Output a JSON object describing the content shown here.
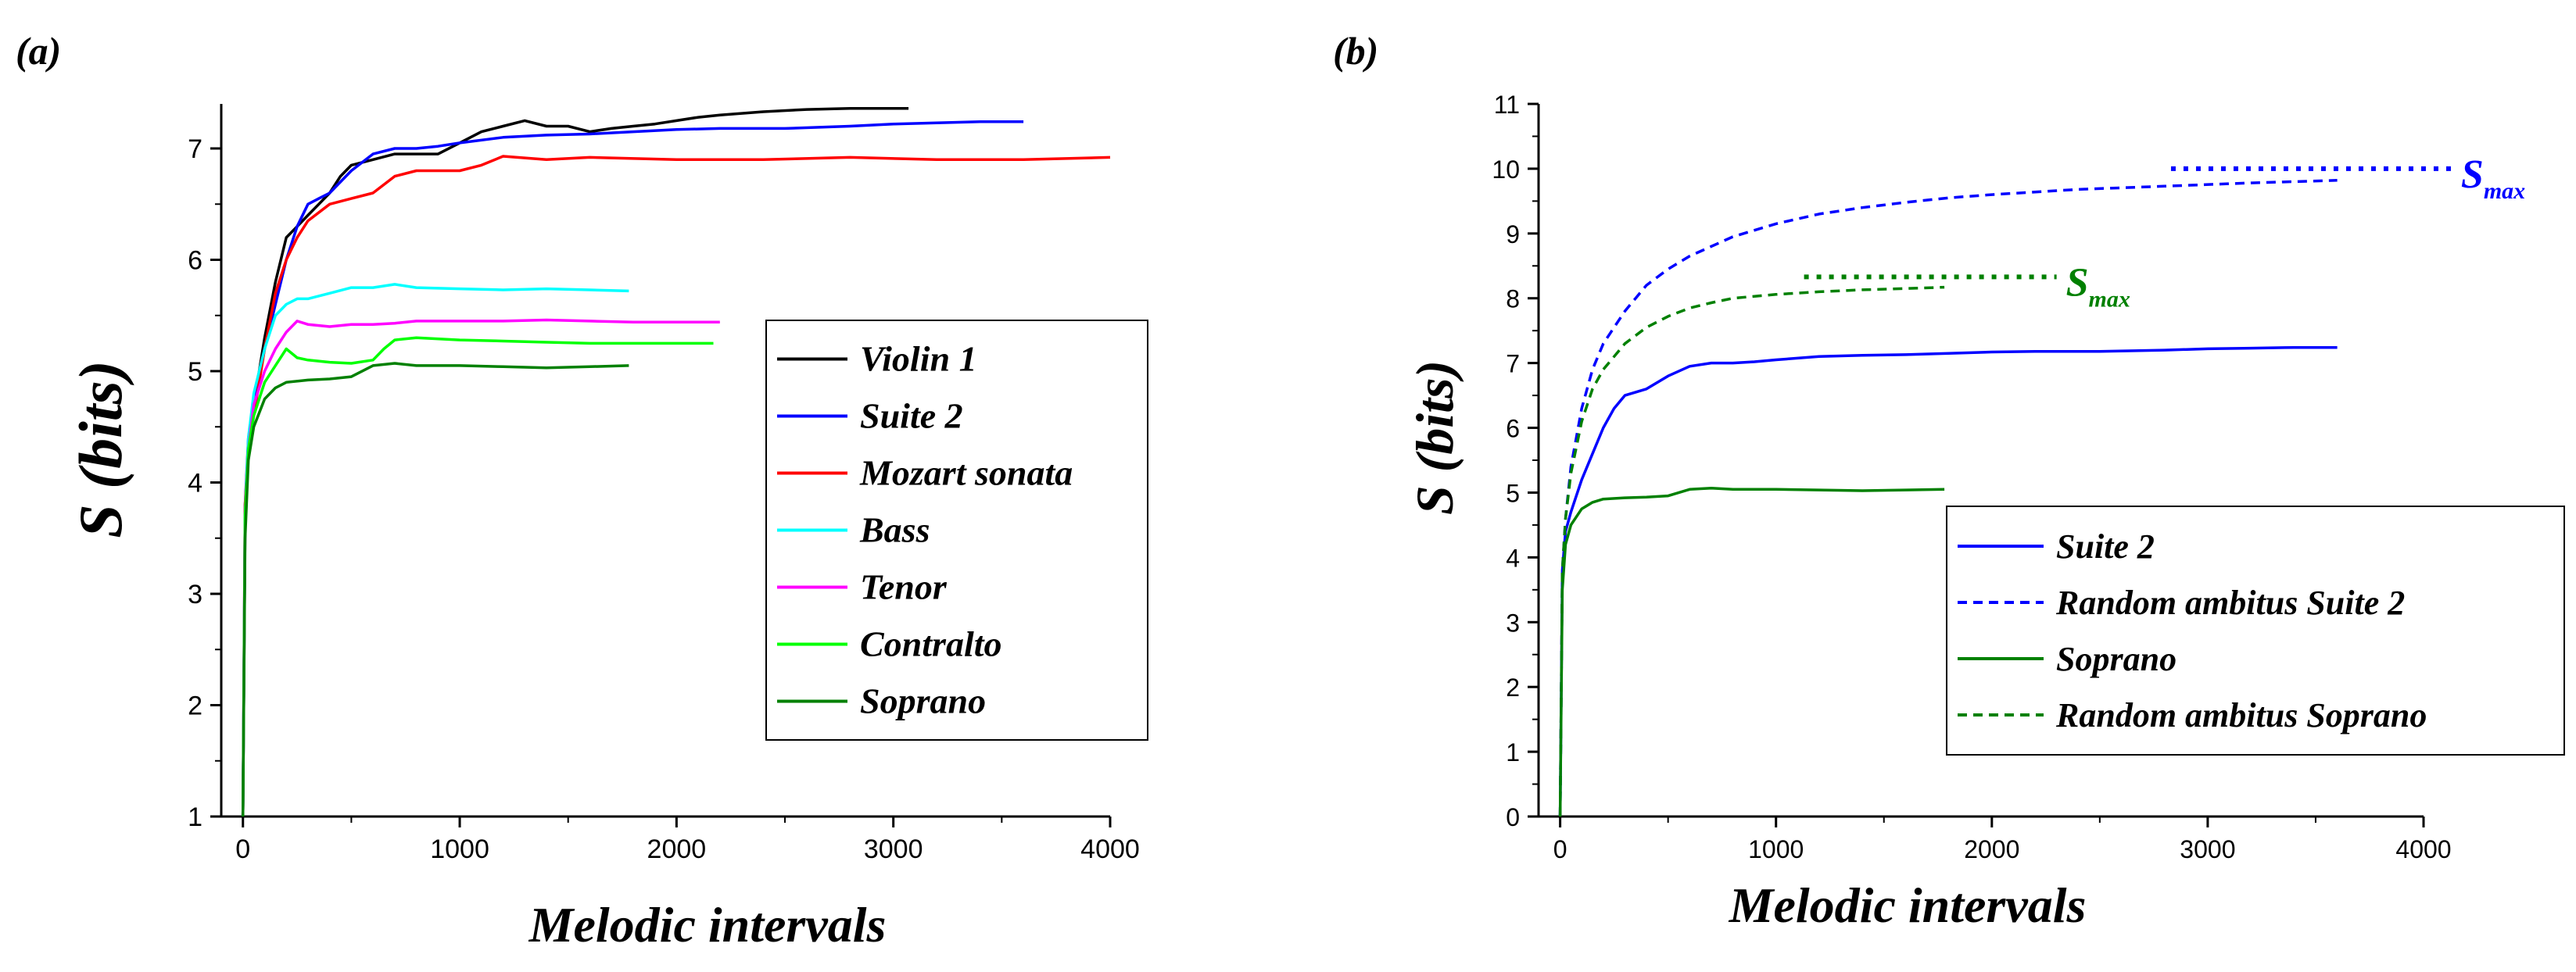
{
  "chart_data": [
    {
      "panel_label": "(a)",
      "type": "line",
      "xlabel": "Melodic intervals",
      "ylabel": "S (bits)",
      "xlim": [
        -100,
        4000
      ],
      "ylim": [
        1,
        7.4
      ],
      "xticks": [
        "0",
        "1000",
        "2000",
        "3000",
        "4000"
      ],
      "yticks": [
        "1",
        "2",
        "3",
        "4",
        "5",
        "6",
        "7"
      ],
      "legend_position": "center-right",
      "series": [
        {
          "name": "Violin 1",
          "color": "#000000",
          "dash": "solid",
          "x": [
            0,
            10,
            25,
            50,
            100,
            150,
            200,
            250,
            300,
            350,
            400,
            450,
            500,
            600,
            700,
            800,
            900,
            1000,
            1100,
            1200,
            1300,
            1400,
            1500,
            1600,
            1700,
            1800,
            1900,
            2000,
            2100,
            2200,
            2400,
            2600,
            2800,
            3000,
            3070
          ],
          "y": [
            1.0,
            3.6,
            4.3,
            4.7,
            5.3,
            5.8,
            6.2,
            6.3,
            6.4,
            6.5,
            6.6,
            6.75,
            6.85,
            6.9,
            6.95,
            6.95,
            6.95,
            7.05,
            7.15,
            7.2,
            7.25,
            7.2,
            7.2,
            7.15,
            7.18,
            7.2,
            7.22,
            7.25,
            7.28,
            7.3,
            7.33,
            7.35,
            7.36,
            7.36,
            7.36
          ]
        },
        {
          "name": "Suite 2",
          "color": "#0000ff",
          "dash": "solid",
          "x": [
            0,
            10,
            25,
            50,
            100,
            150,
            200,
            250,
            300,
            350,
            400,
            500,
            600,
            700,
            800,
            900,
            1000,
            1200,
            1400,
            1600,
            1800,
            2000,
            2200,
            2500,
            2800,
            3000,
            3200,
            3400,
            3600
          ],
          "y": [
            1.0,
            3.8,
            4.4,
            4.7,
            5.2,
            5.6,
            6.0,
            6.3,
            6.5,
            6.55,
            6.6,
            6.8,
            6.95,
            7.0,
            7.0,
            7.02,
            7.05,
            7.1,
            7.12,
            7.13,
            7.15,
            7.17,
            7.18,
            7.18,
            7.2,
            7.22,
            7.23,
            7.24,
            7.24
          ]
        },
        {
          "name": "Mozart sonata",
          "color": "#ff0000",
          "dash": "solid",
          "x": [
            0,
            10,
            25,
            50,
            100,
            150,
            200,
            250,
            300,
            400,
            500,
            600,
            700,
            800,
            1000,
            1100,
            1200,
            1400,
            1600,
            2000,
            2400,
            2800,
            3200,
            3600,
            4000
          ],
          "y": [
            1.0,
            3.8,
            4.3,
            4.6,
            5.2,
            5.7,
            6.0,
            6.2,
            6.35,
            6.5,
            6.55,
            6.6,
            6.75,
            6.8,
            6.8,
            6.85,
            6.93,
            6.9,
            6.92,
            6.9,
            6.9,
            6.92,
            6.9,
            6.9,
            6.92
          ]
        },
        {
          "name": "Bass",
          "color": "#00ffff",
          "dash": "solid",
          "x": [
            0,
            10,
            25,
            50,
            100,
            150,
            200,
            250,
            300,
            400,
            500,
            600,
            700,
            800,
            1000,
            1200,
            1400,
            1600,
            1780
          ],
          "y": [
            1.0,
            3.7,
            4.4,
            4.8,
            5.2,
            5.5,
            5.6,
            5.65,
            5.65,
            5.7,
            5.75,
            5.75,
            5.78,
            5.75,
            5.74,
            5.73,
            5.74,
            5.73,
            5.72
          ]
        },
        {
          "name": "Tenor",
          "color": "#ff00ff",
          "dash": "solid",
          "x": [
            0,
            10,
            25,
            50,
            100,
            150,
            200,
            250,
            300,
            400,
            500,
            600,
            700,
            800,
            1000,
            1200,
            1400,
            1600,
            1800,
            2000,
            2200
          ],
          "y": [
            1.0,
            3.6,
            4.3,
            4.7,
            5.0,
            5.2,
            5.35,
            5.45,
            5.42,
            5.4,
            5.42,
            5.42,
            5.43,
            5.45,
            5.45,
            5.45,
            5.46,
            5.45,
            5.44,
            5.44,
            5.44
          ]
        },
        {
          "name": "Contralto",
          "color": "#00ff00",
          "dash": "solid",
          "x": [
            0,
            10,
            25,
            50,
            100,
            150,
            200,
            250,
            300,
            400,
            500,
            600,
            650,
            700,
            800,
            1000,
            1200,
            1400,
            1600,
            1800,
            2000,
            2170
          ],
          "y": [
            1.0,
            3.7,
            4.3,
            4.6,
            4.9,
            5.05,
            5.2,
            5.12,
            5.1,
            5.08,
            5.07,
            5.1,
            5.2,
            5.28,
            5.3,
            5.28,
            5.27,
            5.26,
            5.25,
            5.25,
            5.25,
            5.25
          ]
        },
        {
          "name": "Soprano",
          "color": "#008000",
          "dash": "solid",
          "x": [
            0,
            10,
            25,
            50,
            100,
            150,
            200,
            300,
            400,
            500,
            600,
            700,
            800,
            1000,
            1200,
            1400,
            1600,
            1780
          ],
          "y": [
            1.0,
            3.5,
            4.2,
            4.5,
            4.75,
            4.85,
            4.9,
            4.92,
            4.93,
            4.95,
            5.05,
            5.07,
            5.05,
            5.05,
            5.04,
            5.03,
            5.04,
            5.05
          ]
        }
      ]
    },
    {
      "panel_label": "(b)",
      "type": "line",
      "xlabel": "Melodic intervals",
      "ylabel": "S (bits)",
      "xlim": [
        -100,
        4000
      ],
      "ylim": [
        0,
        11
      ],
      "xticks": [
        "0",
        "1000",
        "2000",
        "3000",
        "4000"
      ],
      "yticks": [
        "0",
        "1",
        "2",
        "3",
        "4",
        "5",
        "6",
        "7",
        "8",
        "9",
        "10",
        "11"
      ],
      "legend_position": "bottom-right",
      "series": [
        {
          "name": "Suite 2",
          "color": "#0000ff",
          "dash": "solid",
          "x": [
            0,
            10,
            25,
            50,
            100,
            150,
            200,
            250,
            300,
            350,
            400,
            500,
            600,
            700,
            800,
            900,
            1000,
            1200,
            1400,
            1600,
            1800,
            2000,
            2200,
            2500,
            2800,
            3000,
            3200,
            3400,
            3600
          ],
          "y": [
            0.0,
            3.8,
            4.4,
            4.7,
            5.2,
            5.6,
            6.0,
            6.3,
            6.5,
            6.55,
            6.6,
            6.8,
            6.95,
            7.0,
            7.0,
            7.02,
            7.05,
            7.1,
            7.12,
            7.13,
            7.15,
            7.17,
            7.18,
            7.18,
            7.2,
            7.22,
            7.23,
            7.24,
            7.24
          ]
        },
        {
          "name": "Random ambitus Suite 2",
          "color": "#0000ff",
          "dash": "dashed",
          "x": [
            0,
            10,
            25,
            50,
            100,
            150,
            200,
            300,
            400,
            500,
            600,
            700,
            800,
            1000,
            1200,
            1400,
            1600,
            1800,
            2000,
            2400,
            2800,
            3200,
            3600
          ],
          "y": [
            0.0,
            3.8,
            4.6,
            5.4,
            6.3,
            6.9,
            7.3,
            7.8,
            8.2,
            8.45,
            8.65,
            8.8,
            8.95,
            9.15,
            9.3,
            9.4,
            9.48,
            9.55,
            9.6,
            9.68,
            9.73,
            9.78,
            9.82
          ]
        },
        {
          "name": "Soprano",
          "color": "#008000",
          "dash": "solid",
          "x": [
            0,
            10,
            25,
            50,
            100,
            150,
            200,
            300,
            400,
            500,
            600,
            700,
            800,
            1000,
            1200,
            1400,
            1600,
            1780
          ],
          "y": [
            0.0,
            3.5,
            4.2,
            4.5,
            4.75,
            4.85,
            4.9,
            4.92,
            4.93,
            4.95,
            5.05,
            5.07,
            5.05,
            5.05,
            5.04,
            5.03,
            5.04,
            5.05
          ]
        },
        {
          "name": "Random ambitus Soprano",
          "color": "#008000",
          "dash": "dashed",
          "x": [
            0,
            10,
            25,
            50,
            100,
            150,
            200,
            300,
            400,
            500,
            600,
            700,
            800,
            1000,
            1200,
            1400,
            1600,
            1780
          ],
          "y": [
            0.0,
            3.8,
            4.6,
            5.3,
            6.1,
            6.6,
            6.9,
            7.3,
            7.55,
            7.72,
            7.85,
            7.93,
            8.0,
            8.06,
            8.1,
            8.13,
            8.15,
            8.17
          ]
        }
      ],
      "annotations": [
        {
          "text": "S",
          "subscript": "max",
          "color": "#0000ff",
          "value": 10.0,
          "x_range": [
            2830,
            4130
          ]
        },
        {
          "text": "S",
          "subscript": "max",
          "color": "#008000",
          "value": 8.33,
          "x_range": [
            1130,
            2300
          ]
        }
      ]
    }
  ]
}
